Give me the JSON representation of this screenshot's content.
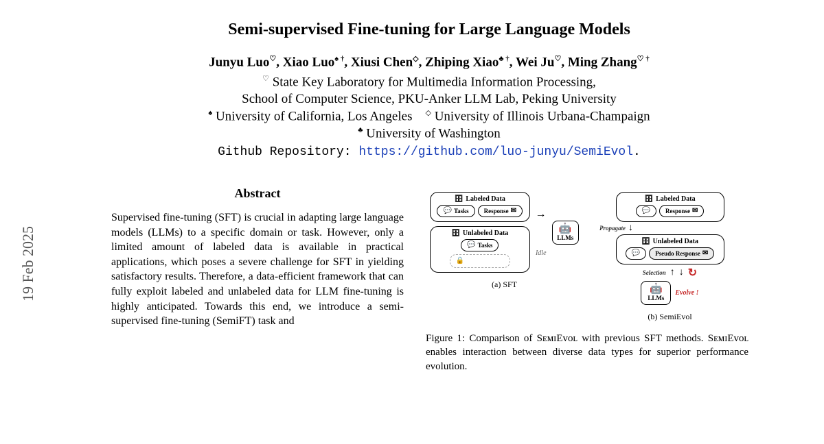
{
  "date_stamp": "19 Feb 2025",
  "title": "Semi-supervised Fine-tuning for Large Language Models",
  "authors_html": "Junyu Luo<sup>♡</sup>, Xiao Luo<sup>♠ †</sup>, Xiusi Chen<sup>◇</sup>, Zhiping Xiao<sup>♣ †</sup>, Wei Ju<sup>♡</sup>, Ming Zhang<sup>♡ †</sup>",
  "affiliations": [
    "<sup>♡</sup> State Key Laboratory for Multimedia Information Processing,",
    "School of Computer Science, PKU-Anker LLM Lab, Peking University",
    "<sup>♠</sup> University of California, Los Angeles&nbsp;&nbsp;&nbsp;&nbsp;<sup>◇</sup> University of Illinois Urbana-Champaign",
    "<sup>♣</sup> University of Washington"
  ],
  "repo_label": "Github Repository: ",
  "repo_url_text": "https://github.com/luo-junyu/SemiEvol",
  "repo_url": "https://github.com/luo-junyu/SemiEvol",
  "abstract_heading": "Abstract",
  "abstract_body": "Supervised fine-tuning (SFT) is crucial in adapting large language models (LLMs) to a specific domain or task. However, only a limited amount of labeled data is available in practical applications, which poses a severe challenge for SFT in yielding satisfactory results. Therefore, a data-efficient framework that can fully exploit labeled and unlabeled data for LLM fine-tuning is highly anticipated. Towards this end, we introduce a semi-supervised fine-tuning (SemiFT) task and",
  "figure1": {
    "sft": {
      "labeled_data": "Labeled Data",
      "unlabeled_data": "Unlabeled Data",
      "tasks": "Tasks",
      "response": "Response",
      "llms": "LLMs",
      "idle": "Idle",
      "caption": "(a) SFT"
    },
    "semievol": {
      "labeled_data": "Labeled Data",
      "unlabeled_data": "Unlabeled Data",
      "response": "Response",
      "pseudo_response": "Pseudo Response",
      "propagate": "Propagate",
      "selection": "Selection",
      "llms": "LLMs",
      "evolve": "Evolve !",
      "caption": "(b) SemiEvol"
    },
    "caption": "Figure 1: Comparison of SᴇᴍɪEᴠᴏʟ with previous SFT methods. SᴇᴍɪEᴠᴏʟ enables interaction between diverse data types for superior performance evolution."
  },
  "colors": {
    "link": "#1a3fb8",
    "evolve": "#c62828",
    "text": "#000000",
    "bg": "#ffffff"
  },
  "typography": {
    "title_fontsize": 24,
    "body_fontsize": 16,
    "font_family": "Times New Roman"
  }
}
